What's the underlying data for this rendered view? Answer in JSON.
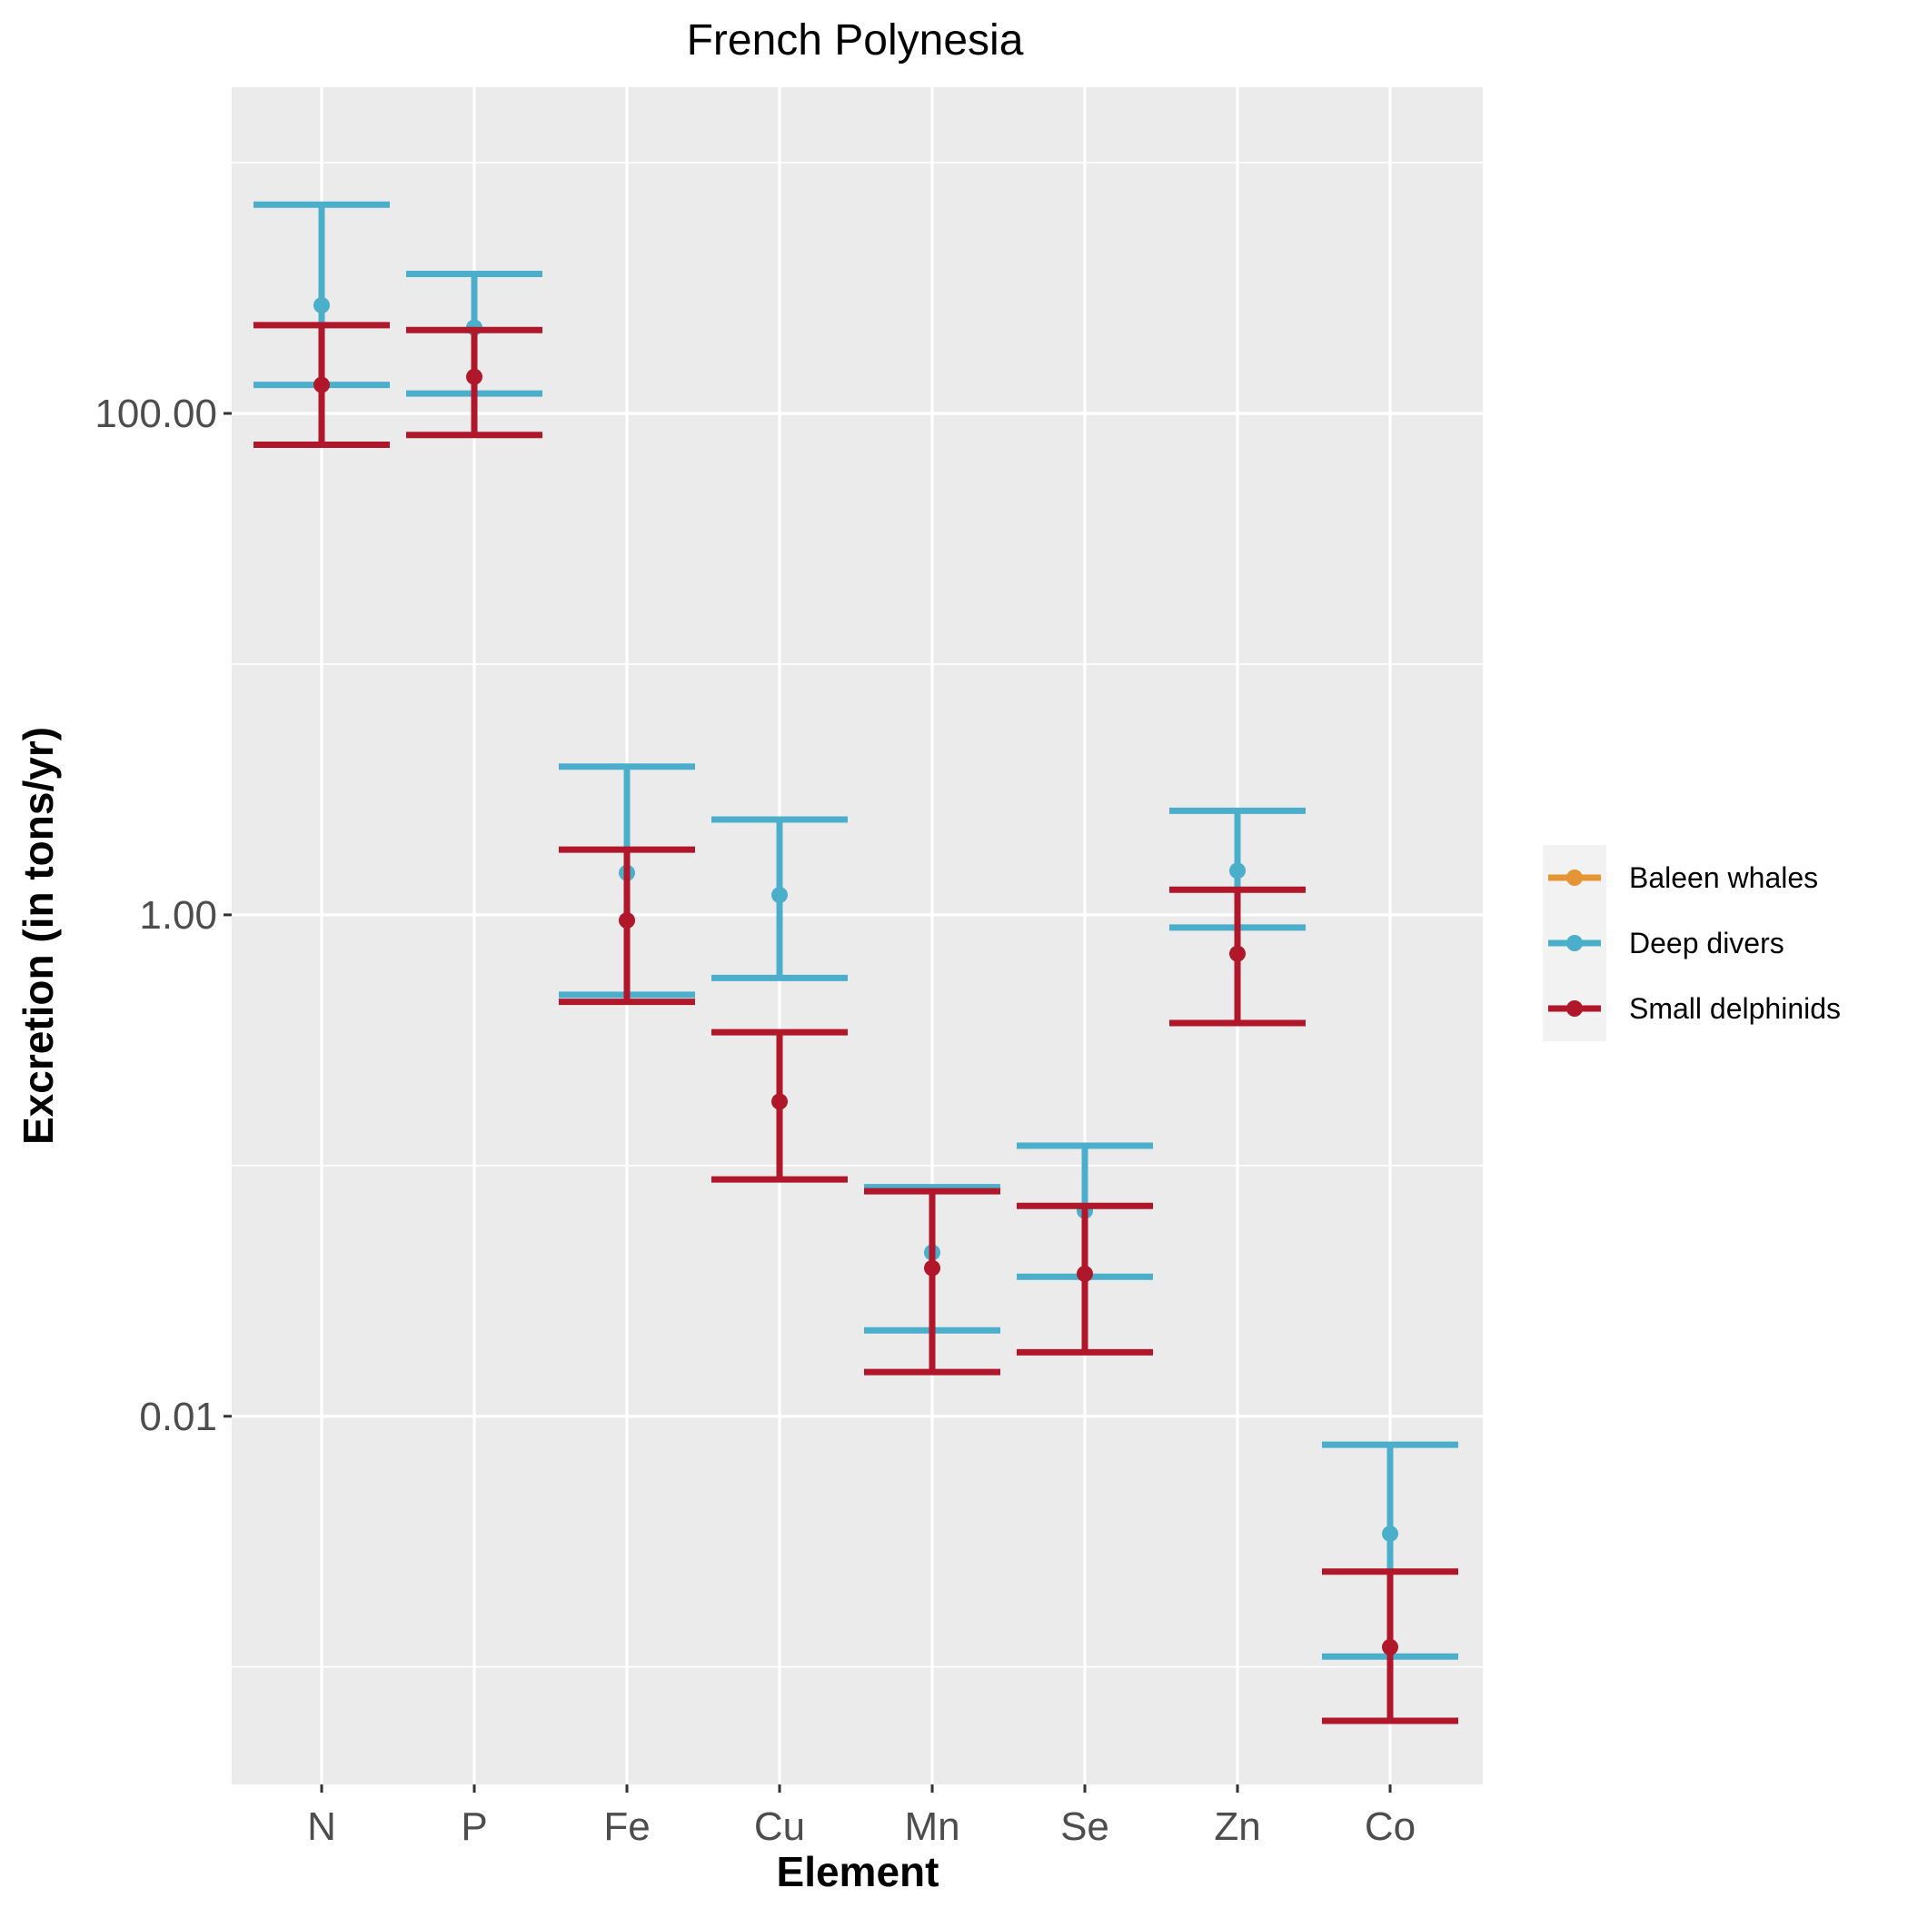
{
  "chart_data": {
    "type": "errorbar",
    "title": "French Polynesia",
    "xlabel": "Element",
    "ylabel": "Excretion (in tons/yr)",
    "y_scale": "log10",
    "ylim": [
      0.00034,
      2000
    ],
    "y_ticks": [
      100,
      1,
      0.01
    ],
    "y_tick_labels": [
      "100.00",
      "1.00",
      "0.01"
    ],
    "categories": [
      "N",
      "P",
      "Fe",
      "Cu",
      "Mn",
      "Se",
      "Zn",
      "Co"
    ],
    "grid": true,
    "legend_position": "right",
    "series": [
      {
        "name": "Baleen whales",
        "color": "#E69535",
        "points": []
      },
      {
        "name": "Deep divers",
        "color": "#4BAFCC",
        "points": [
          {
            "x": "N",
            "y": 270,
            "low": 130,
            "high": 680
          },
          {
            "x": "P",
            "y": 220,
            "low": 120,
            "high": 360
          },
          {
            "x": "Fe",
            "y": 1.47,
            "low": 0.48,
            "high": 3.9
          },
          {
            "x": "Cu",
            "y": 1.2,
            "low": 0.56,
            "high": 2.4
          },
          {
            "x": "Mn",
            "y": 0.045,
            "low": 0.022,
            "high": 0.082
          },
          {
            "x": "Se",
            "y": 0.066,
            "low": 0.036,
            "high": 0.12
          },
          {
            "x": "Zn",
            "y": 1.5,
            "low": 0.89,
            "high": 2.6
          },
          {
            "x": "Co",
            "y": 0.0034,
            "low": 0.0011,
            "high": 0.0077
          }
        ]
      },
      {
        "name": "Small delphinids",
        "color": "#B0172A",
        "points": [
          {
            "x": "N",
            "y": 130,
            "low": 75,
            "high": 225
          },
          {
            "x": "P",
            "y": 140,
            "low": 82,
            "high": 215
          },
          {
            "x": "Fe",
            "y": 0.95,
            "low": 0.45,
            "high": 1.82
          },
          {
            "x": "Cu",
            "y": 0.18,
            "low": 0.088,
            "high": 0.34
          },
          {
            "x": "Mn",
            "y": 0.039,
            "low": 0.015,
            "high": 0.079
          },
          {
            "x": "Se",
            "y": 0.037,
            "low": 0.018,
            "high": 0.069
          },
          {
            "x": "Zn",
            "y": 0.7,
            "low": 0.37,
            "high": 1.26
          },
          {
            "x": "Co",
            "y": 0.0012,
            "low": 0.00061,
            "high": 0.0024
          }
        ]
      }
    ]
  }
}
